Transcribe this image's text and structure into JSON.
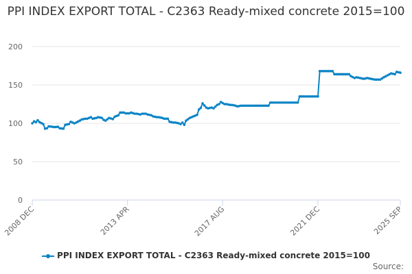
{
  "chart_data": {
    "type": "line",
    "title": "PPI INDEX EXPORT TOTAL - C2363 Ready-mixed concrete 2015=100",
    "xlabel": "",
    "ylabel": "",
    "ylim": [
      0,
      200
    ],
    "yticks": [
      "0",
      "50",
      "100",
      "150",
      "200"
    ],
    "xlim": [
      "2008-12",
      "2025-09"
    ],
    "xticks": [
      {
        "date": "2008-12",
        "label": "2008 DEC"
      },
      {
        "date": "2013-04",
        "label": "2013 APR"
      },
      {
        "date": "2017-08",
        "label": "2017 AUG"
      },
      {
        "date": "2021-12",
        "label": "2021 DEC"
      },
      {
        "date": "2025-09",
        "label": "2025 SEP"
      }
    ],
    "grid": "horizontal",
    "legend_position": "bottom",
    "color": "#0b84c6",
    "series": [
      {
        "name": "PPI INDEX EXPORT TOTAL - C2363 Ready-mixed concrete 2015=100",
        "points": [
          [
            "2008-12",
            100
          ],
          [
            "2009-01",
            102.5
          ],
          [
            "2009-02",
            101.5
          ],
          [
            "2009-03",
            104
          ],
          [
            "2009-04",
            101.5
          ],
          [
            "2009-06",
            99
          ],
          [
            "2009-07",
            93
          ],
          [
            "2009-08",
            93.5
          ],
          [
            "2009-09",
            96
          ],
          [
            "2009-11",
            95.5
          ],
          [
            "2009-12",
            95
          ],
          [
            "2010-02",
            95.5
          ],
          [
            "2010-03",
            93.5
          ],
          [
            "2010-05",
            93
          ],
          [
            "2010-06",
            98
          ],
          [
            "2010-08",
            99
          ],
          [
            "2010-09",
            102
          ],
          [
            "2010-11",
            100
          ],
          [
            "2010-12",
            101
          ],
          [
            "2011-02",
            103.5
          ],
          [
            "2011-03",
            105
          ],
          [
            "2011-05",
            106
          ],
          [
            "2011-06",
            106
          ],
          [
            "2011-08",
            108
          ],
          [
            "2011-09",
            106
          ],
          [
            "2011-11",
            107
          ],
          [
            "2011-12",
            108
          ],
          [
            "2012-02",
            107
          ],
          [
            "2012-03",
            104.5
          ],
          [
            "2012-04",
            103.5
          ],
          [
            "2012-06",
            107
          ],
          [
            "2012-08",
            105.5
          ],
          [
            "2012-09",
            108.5
          ],
          [
            "2012-11",
            110.5
          ],
          [
            "2012-12",
            114
          ],
          [
            "2013-02",
            114
          ],
          [
            "2013-03",
            113
          ],
          [
            "2013-05",
            113
          ],
          [
            "2013-06",
            114
          ],
          [
            "2013-08",
            112.5
          ],
          [
            "2013-09",
            112.5
          ],
          [
            "2013-11",
            111.5
          ],
          [
            "2013-12",
            112.5
          ],
          [
            "2014-02",
            112.5
          ],
          [
            "2014-03",
            111.5
          ],
          [
            "2014-05",
            110.5
          ],
          [
            "2014-06",
            109
          ],
          [
            "2014-08",
            108
          ],
          [
            "2014-09",
            108
          ],
          [
            "2014-11",
            107
          ],
          [
            "2014-12",
            106
          ],
          [
            "2015-02",
            106
          ],
          [
            "2015-03",
            102
          ],
          [
            "2015-05",
            101
          ],
          [
            "2015-06",
            101
          ],
          [
            "2015-08",
            100
          ],
          [
            "2015-09",
            99
          ],
          [
            "2015-10",
            101
          ],
          [
            "2015-11",
            98
          ],
          [
            "2015-12",
            103.5
          ],
          [
            "2016-02",
            107
          ],
          [
            "2016-03",
            108
          ],
          [
            "2016-05",
            110
          ],
          [
            "2016-06",
            111
          ],
          [
            "2016-07",
            118
          ],
          [
            "2016-08",
            120
          ],
          [
            "2016-09",
            126
          ],
          [
            "2016-11",
            120.5
          ],
          [
            "2016-12",
            119.5
          ],
          [
            "2017-02",
            120.5
          ],
          [
            "2017-03",
            119.5
          ],
          [
            "2017-05",
            124
          ],
          [
            "2017-06",
            125
          ],
          [
            "2017-07",
            127.7
          ],
          [
            "2017-09",
            125
          ],
          [
            "2017-10",
            125
          ],
          [
            "2017-12",
            124
          ],
          [
            "2018-01",
            124
          ],
          [
            "2018-03",
            123
          ],
          [
            "2018-04",
            122
          ],
          [
            "2018-06",
            123
          ],
          [
            "2018-12",
            123
          ],
          [
            "2019-06",
            123
          ],
          [
            "2019-09",
            123
          ],
          [
            "2019-10",
            127
          ],
          [
            "2020-04",
            127
          ],
          [
            "2020-10",
            127
          ],
          [
            "2021-01",
            127
          ],
          [
            "2021-02",
            135
          ],
          [
            "2021-08",
            135
          ],
          [
            "2021-12",
            135
          ],
          [
            "2022-01",
            168
          ],
          [
            "2022-08",
            168
          ],
          [
            "2022-09",
            164
          ],
          [
            "2023-01",
            164
          ],
          [
            "2023-05",
            164
          ],
          [
            "2023-06",
            161.5
          ],
          [
            "2023-08",
            159
          ],
          [
            "2023-09",
            160
          ],
          [
            "2023-11",
            159
          ],
          [
            "2024-01",
            158
          ],
          [
            "2024-03",
            159
          ],
          [
            "2024-05",
            158
          ],
          [
            "2024-07",
            157
          ],
          [
            "2024-10",
            157
          ],
          [
            "2024-12",
            160
          ],
          [
            "2025-02",
            162.5
          ],
          [
            "2025-04",
            165
          ],
          [
            "2025-06",
            164
          ],
          [
            "2025-07",
            167
          ],
          [
            "2025-09",
            166
          ]
        ]
      }
    ]
  },
  "source_label": "Source:"
}
